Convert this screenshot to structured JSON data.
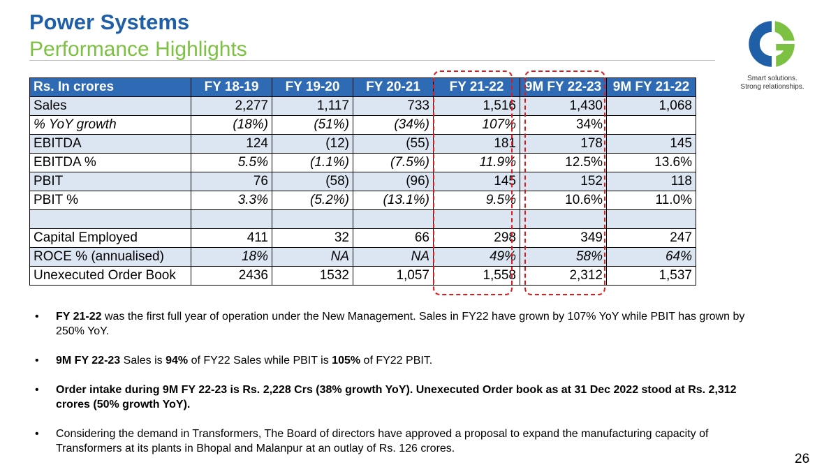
{
  "header": {
    "title": "Power Systems",
    "subtitle": "Performance Highlights",
    "tagline_line1": "Smart solutions.",
    "tagline_line2": "Strong relationships."
  },
  "colors": {
    "title": "#1f5fa8",
    "subtitle": "#7cc142",
    "table_header": "#2e6bb4",
    "row_shade": "#dce6f2",
    "highlight_dash": "#e01a1a"
  },
  "table": {
    "headers": [
      "Rs. In crores",
      "FY 18-19",
      "FY 19-20",
      "FY 20-21",
      "FY 21-22",
      "9M FY 22-23",
      "9M FY 21-22"
    ],
    "rows": [
      {
        "label": "Sales",
        "values": [
          "2,277",
          "1,117",
          "733",
          "1,516",
          "1,430",
          "1,068"
        ]
      },
      {
        "label": "% YoY growth",
        "values": [
          "(18%)",
          "(51%)",
          "(34%)",
          "107%",
          "34%",
          ""
        ]
      },
      {
        "label": "EBITDA",
        "values": [
          "124",
          "(12)",
          "(55)",
          "181",
          "178",
          "145"
        ]
      },
      {
        "label": "EBITDA %",
        "values": [
          "5.5%",
          "(1.1%)",
          "(7.5%)",
          "11.9%",
          "12.5%",
          "13.6%"
        ]
      },
      {
        "label": "PBIT",
        "values": [
          "76",
          "(58)",
          "(96)",
          "145",
          "152",
          "118"
        ]
      },
      {
        "label": "PBIT %",
        "values": [
          "3.3%",
          "(5.2%)",
          "(13.1%)",
          "9.5%",
          "10.6%",
          "11.0%"
        ]
      },
      {
        "label": "",
        "values": [
          "",
          "",
          "",
          "",
          "",
          ""
        ]
      },
      {
        "label": "Capital Employed",
        "values": [
          "411",
          "32",
          "66",
          "298",
          "349",
          "247"
        ]
      },
      {
        "label": "ROCE % (annualised)",
        "values": [
          "18%",
          "NA",
          "NA",
          "49%",
          "58%",
          "64%"
        ]
      },
      {
        "label": "Unexecuted Order Book",
        "values": [
          "2436",
          "1532",
          "1,057",
          "1,558",
          "2,312",
          "1,537"
        ]
      }
    ]
  },
  "bullets": {
    "b1": {
      "bold": "FY 21-22",
      "text": " was the first full year of operation under the New Management. Sales in FY22 have grown by 107% YoY while PBIT has grown by 250% YoY."
    },
    "b2": {
      "bold1": "9M FY 22-23",
      "text1": " Sales is ",
      "bold2": "94%",
      "text2": " of FY22 Sales while PBIT is ",
      "bold3": "105%",
      "text3": " of FY22 PBIT."
    },
    "b3": {
      "bold": "Order intake during 9M FY 22-23 is Rs. 2,228 Crs (38% growth YoY). Unexecuted Order book as at 31 Dec 2022 stood at Rs. 2,312 crores (50% growth YoY)."
    },
    "b4": {
      "text": "Considering the demand in Transformers, The Board of directors have approved a proposal to expand the manufacturing capacity of Transformers at its plants in Bhopal and Malanpur at an outlay of Rs. 126 crores."
    },
    "marker": "•"
  },
  "page_number": "26",
  "logo_icon": "cg-logo-icon"
}
